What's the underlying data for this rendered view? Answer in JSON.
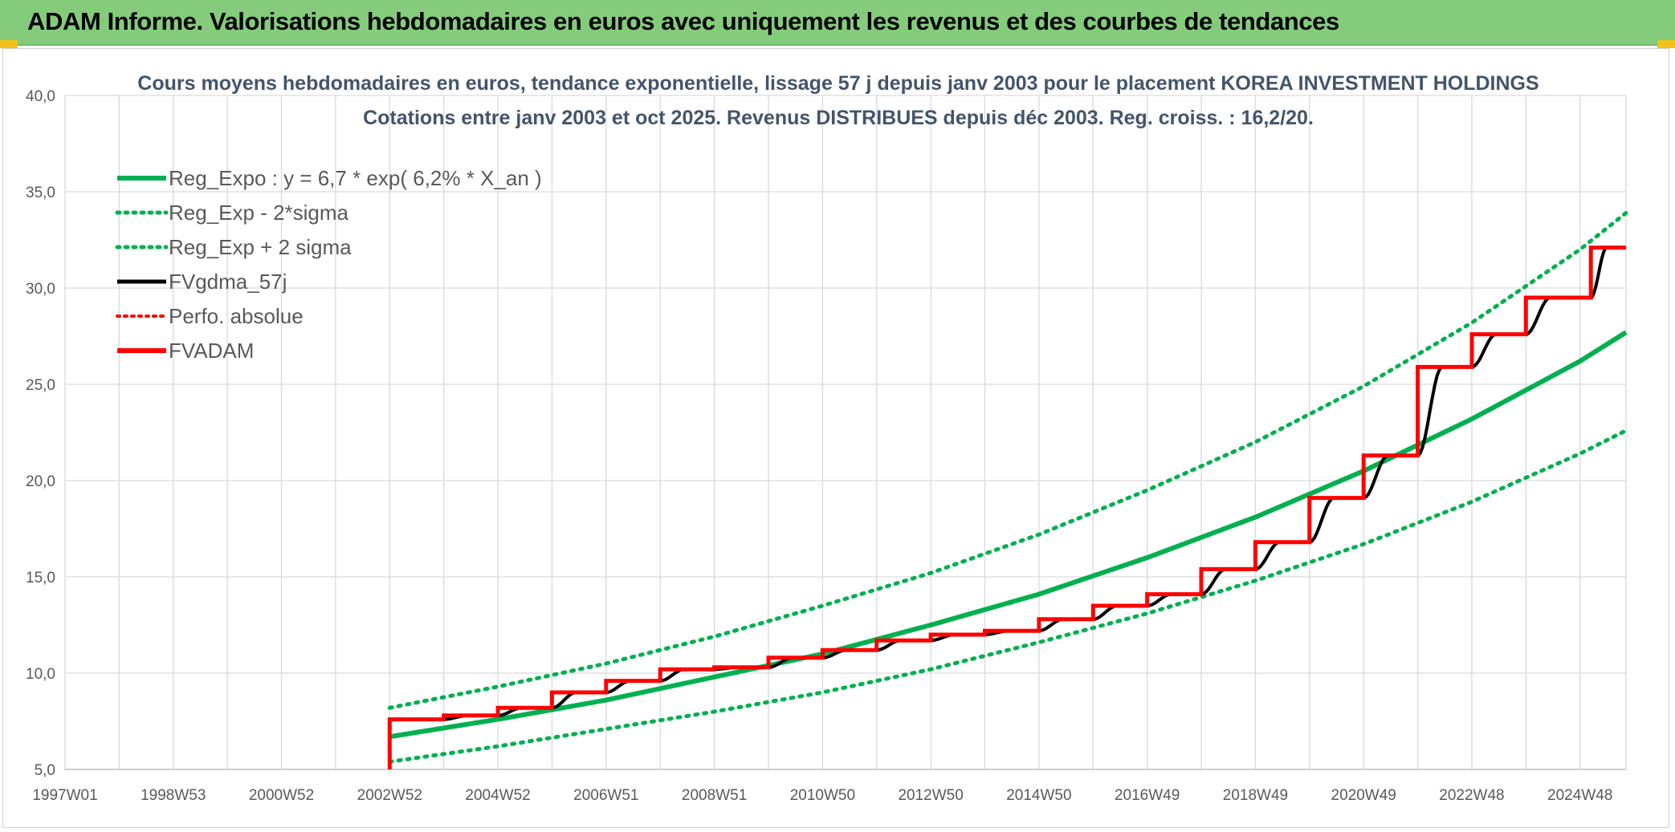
{
  "header": {
    "title": "ADAM Informe. Valorisations hebdomadaires en euros avec uniquement les revenus et des courbes de tendances"
  },
  "colors": {
    "header_bg": "#84cc7c",
    "reg_green": "#00b050",
    "band_green": "#00b050",
    "gdma_black": "#000000",
    "fvadam_red": "#ff0000",
    "perfo_red": "#ff0000"
  },
  "chart_data": {
    "type": "line",
    "title": "Cours moyens hebdomadaires en euros, tendance exponentielle, lissage 57 j depuis janv 2003 pour le placement KOREA INVESTMENT HOLDINGS",
    "subtitle": "Cotations entre janv 2003 et oct 2025. Revenus DISTRIBUES depuis déc 2003. Reg. croiss. : 16,2/20.",
    "xlabel": "",
    "ylabel": "",
    "xlim": [
      1997.0,
      2025.85
    ],
    "ylim": [
      5.0,
      40.0
    ],
    "y_ticks": [
      "5,0",
      "10,0",
      "15,0",
      "20,0",
      "25,0",
      "30,0",
      "35,0",
      "40,0"
    ],
    "x_ticks": [
      "1997W01",
      "1998W53",
      "2000W52",
      "2002W52",
      "2004W52",
      "2006W51",
      "2008W51",
      "2010W50",
      "2012W50",
      "2014W50",
      "2016W49",
      "2018W49",
      "2020W49",
      "2022W48",
      "2024W48"
    ],
    "x_tick_years": [
      1997.0,
      1999.0,
      2001.0,
      2003.0,
      2005.0,
      2007.0,
      2009.0,
      2011.0,
      2013.0,
      2015.0,
      2017.0,
      2019.0,
      2021.0,
      2023.0,
      2025.0
    ],
    "grid": true,
    "legend_position": "top-left",
    "legend": [
      {
        "label": "Reg_Expo : y = 6,7 * exp( 6,2% *  X_an )",
        "style": "solid-green"
      },
      {
        "label": "Reg_Exp - 2*sigma",
        "style": "dotted-green"
      },
      {
        "label": "Reg_Exp + 2 sigma",
        "style": "dotted-green"
      },
      {
        "label": "FVgdma_57j",
        "style": "solid-black"
      },
      {
        "label": "Perfo. absolue",
        "style": "dotted-red"
      },
      {
        "label": "FVADAM",
        "style": "solid-red"
      }
    ],
    "series": [
      {
        "name": "Reg_Expo : y = 6,7 * exp( 6,2% *  X_an )",
        "x": [
          2003.0,
          2005.0,
          2007.0,
          2009.0,
          2011.0,
          2013.0,
          2015.0,
          2017.0,
          2019.0,
          2021.0,
          2023.0,
          2025.0,
          2025.85
        ],
        "y": [
          6.7,
          7.6,
          8.6,
          9.8,
          11.0,
          12.5,
          14.1,
          16.0,
          18.1,
          20.5,
          23.2,
          26.2,
          27.7
        ]
      },
      {
        "name": "Reg_Exp - 2*sigma",
        "x": [
          2003.0,
          2005.0,
          2007.0,
          2009.0,
          2011.0,
          2013.0,
          2015.0,
          2017.0,
          2019.0,
          2021.0,
          2023.0,
          2025.0,
          2025.85
        ],
        "y": [
          5.4,
          6.2,
          7.1,
          8.0,
          9.0,
          10.2,
          11.6,
          13.1,
          14.8,
          16.7,
          18.9,
          21.4,
          22.6
        ]
      },
      {
        "name": "Reg_Exp + 2 sigma",
        "x": [
          2003.0,
          2005.0,
          2007.0,
          2009.0,
          2011.0,
          2013.0,
          2015.0,
          2017.0,
          2019.0,
          2021.0,
          2023.0,
          2025.0,
          2025.85
        ],
        "y": [
          8.2,
          9.3,
          10.5,
          11.9,
          13.5,
          15.2,
          17.2,
          19.5,
          22.0,
          24.9,
          28.2,
          32.0,
          33.9
        ]
      },
      {
        "name": "FVADAM",
        "x": [
          2003.0,
          2003.0,
          2004.0,
          2004.0,
          2005.0,
          2005.0,
          2006.0,
          2006.0,
          2007.0,
          2007.0,
          2008.0,
          2008.0,
          2009.0,
          2009.0,
          2010.0,
          2010.0,
          2011.0,
          2011.0,
          2012.0,
          2012.0,
          2013.0,
          2013.0,
          2014.0,
          2014.0,
          2015.0,
          2015.0,
          2016.0,
          2016.0,
          2017.0,
          2017.0,
          2018.0,
          2018.0,
          2019.0,
          2019.0,
          2020.0,
          2020.0,
          2021.0,
          2021.0,
          2022.0,
          2022.0,
          2023.0,
          2023.0,
          2024.0,
          2024.0,
          2025.2,
          2025.2,
          2025.85
        ],
        "y": [
          5.0,
          7.6,
          7.6,
          7.8,
          7.8,
          8.2,
          8.2,
          9.0,
          9.0,
          9.6,
          9.6,
          10.2,
          10.2,
          10.3,
          10.3,
          10.8,
          10.8,
          11.2,
          11.2,
          11.7,
          11.7,
          12.0,
          12.0,
          12.2,
          12.2,
          12.8,
          12.8,
          13.5,
          13.5,
          14.1,
          14.1,
          15.4,
          15.4,
          16.8,
          16.8,
          19.1,
          19.1,
          21.3,
          21.3,
          25.9,
          25.9,
          27.6,
          27.6,
          29.5,
          29.5,
          32.1,
          32.1
        ]
      }
    ]
  }
}
